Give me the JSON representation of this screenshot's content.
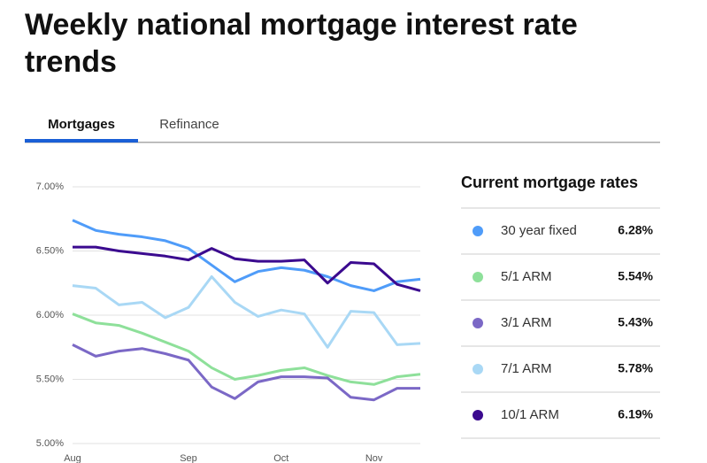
{
  "header": {
    "title": "Weekly national mortgage interest rate trends"
  },
  "tabs": [
    "Mortgages",
    "Refinance"
  ],
  "chart_data": {
    "type": "line",
    "categories": [
      "Aug",
      null,
      null,
      null,
      null,
      "Sep",
      null,
      null,
      null,
      "Oct",
      null,
      null,
      null,
      "Nov",
      null,
      null
    ],
    "series": [
      {
        "name": "30 year fixed",
        "color": "#4f9cf9",
        "values": [
          6.74,
          6.66,
          6.63,
          6.61,
          6.58,
          6.52,
          6.39,
          6.26,
          6.34,
          6.37,
          6.35,
          6.3,
          6.23,
          6.19,
          6.26,
          6.28
        ]
      },
      {
        "name": "5/1 ARM",
        "color": "#8ee09a",
        "values": [
          6.01,
          5.94,
          5.92,
          5.86,
          5.79,
          5.72,
          5.59,
          5.5,
          5.53,
          5.57,
          5.59,
          5.53,
          5.48,
          5.46,
          5.52,
          5.54
        ]
      },
      {
        "name": "3/1 ARM",
        "color": "#7b68c6",
        "values": [
          5.77,
          5.68,
          5.72,
          5.74,
          5.7,
          5.65,
          5.44,
          5.35,
          5.48,
          5.52,
          5.52,
          5.51,
          5.36,
          5.34,
          5.43,
          5.43
        ]
      },
      {
        "name": "7/1 ARM",
        "color": "#a9d8f5",
        "values": [
          6.23,
          6.21,
          6.08,
          6.1,
          5.98,
          6.06,
          6.3,
          6.1,
          5.99,
          6.04,
          6.01,
          5.75,
          6.03,
          6.02,
          5.77,
          5.78
        ]
      },
      {
        "name": "10/1 ARM",
        "color": "#3b0a8f",
        "values": [
          6.53,
          6.53,
          6.5,
          6.48,
          6.46,
          6.43,
          6.52,
          6.44,
          6.42,
          6.42,
          6.43,
          6.25,
          6.41,
          6.4,
          6.24,
          6.19
        ]
      }
    ],
    "ylim": [
      5,
      7
    ],
    "yticks": [
      {
        "value": 5,
        "label": "5.00%"
      },
      {
        "value": 5.5,
        "label": "5.50%"
      },
      {
        "value": 6,
        "label": "6.00%"
      },
      {
        "value": 6.5,
        "label": "6.50%"
      },
      {
        "value": 7,
        "label": "7.00%"
      }
    ],
    "grid": true
  },
  "current_rates": {
    "title": "Current mortgage rates",
    "rates": [
      "6.28%",
      "5.54%",
      "5.43%",
      "5.78%",
      "6.19%"
    ]
  }
}
